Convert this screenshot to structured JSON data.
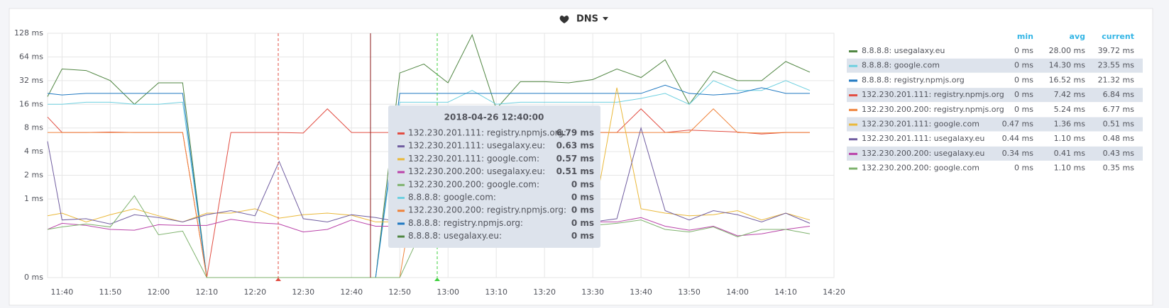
{
  "chart_data": {
    "type": "line",
    "title": "DNS",
    "x": [
      "11:37",
      "11:40",
      "11:45",
      "11:50",
      "11:55",
      "12:00",
      "12:05",
      "12:10",
      "12:15",
      "12:20",
      "12:25",
      "12:30",
      "12:35",
      "12:40",
      "12:45",
      "12:50",
      "12:55",
      "13:00",
      "13:05",
      "13:10",
      "13:15",
      "13:20",
      "13:25",
      "13:30",
      "13:35",
      "13:40",
      "13:45",
      "13:50",
      "13:55",
      "14:00",
      "14:05",
      "14:10",
      "14:15"
    ],
    "xlim": [
      "11:37",
      "14:20"
    ],
    "xticks": [
      "11:40",
      "11:50",
      "12:00",
      "12:10",
      "12:20",
      "12:30",
      "12:40",
      "12:50",
      "13:00",
      "13:10",
      "13:20",
      "13:30",
      "13:40",
      "13:50",
      "14:00",
      "14:10",
      "14:20"
    ],
    "ylim": [
      0.1,
      128
    ],
    "log_scale": true,
    "grid": true,
    "yticks": [
      {
        "value": 0.1,
        "label": "0 ms"
      },
      {
        "value": 1,
        "label": "1 ms"
      },
      {
        "value": 2,
        "label": "2 ms"
      },
      {
        "value": 4,
        "label": "4 ms"
      },
      {
        "value": 8,
        "label": "8 ms"
      },
      {
        "value": 16,
        "label": "16 ms"
      },
      {
        "value": 32,
        "label": "32 ms"
      },
      {
        "value": 64,
        "label": "64 ms"
      },
      {
        "value": 128,
        "label": "128 ms"
      }
    ],
    "series": [
      {
        "name": "8.8.8.8: usegalaxy.eu",
        "color": "#508642",
        "values": [
          20,
          45,
          43,
          32,
          16,
          30,
          30,
          0.1,
          0.1,
          0.1,
          0.1,
          0.1,
          0.1,
          0.1,
          0.1,
          40,
          52,
          30,
          122,
          14,
          31,
          31,
          30,
          33,
          45,
          35,
          59,
          16,
          42,
          32,
          32,
          56,
          41
        ]
      },
      {
        "name": "8.8.8.8: google.com",
        "color": "#6ed0e0",
        "values": [
          16,
          16,
          17,
          17,
          16,
          16,
          17,
          0.1,
          0.1,
          0.1,
          0.1,
          0.1,
          0.1,
          0.1,
          0.1,
          17,
          17,
          17,
          24,
          16,
          17,
          17,
          17,
          17,
          17,
          19,
          22,
          16,
          32,
          24,
          24,
          32,
          24
        ]
      },
      {
        "name": "8.8.8.8: registry.npmjs.org",
        "color": "#1f78c1",
        "values": [
          22,
          21,
          22,
          22,
          22,
          22,
          22,
          0.1,
          0.1,
          0.1,
          0.1,
          0.1,
          0.1,
          0.1,
          0.1,
          22,
          22,
          22,
          22,
          22,
          22,
          22,
          22,
          22,
          22,
          22,
          28,
          22,
          21,
          22,
          26,
          22,
          22
        ]
      },
      {
        "name": "132.230.201.111: registry.npmjs.org",
        "color": "#e24d42",
        "values": [
          11,
          7,
          7,
          7.1,
          7,
          7,
          7,
          0.1,
          7,
          7,
          7,
          6.9,
          14,
          7,
          7,
          7,
          7,
          7,
          7,
          7,
          7,
          7,
          7,
          7,
          7,
          14,
          7,
          7.5,
          7.3,
          7.1,
          6.7,
          7,
          7
        ]
      },
      {
        "name": "132.230.200.200: registry.npmjs.org",
        "color": "#ef843c",
        "values": [
          7,
          7,
          7,
          7,
          7,
          7,
          7,
          0.1,
          0.1,
          0.1,
          0.1,
          0.1,
          0.1,
          0.1,
          0.1,
          0.1,
          7,
          7,
          7,
          7,
          7,
          7,
          7,
          7,
          7,
          7,
          7,
          7,
          14,
          7,
          6.9,
          7,
          7
        ]
      },
      {
        "name": "132.230.201.111: google.com",
        "color": "#eab839",
        "values": [
          0.61,
          0.66,
          0.51,
          0.63,
          0.75,
          0.61,
          0.51,
          0.66,
          0.66,
          0.75,
          0.57,
          0.63,
          0.66,
          0.62,
          0.51,
          0.51,
          0.51,
          0.51,
          0.51,
          0.51,
          0.51,
          0.51,
          0.51,
          0.51,
          26,
          0.75,
          0.66,
          0.61,
          0.63,
          0.71,
          0.54,
          0.66,
          0.54
        ]
      },
      {
        "name": "132.230.201.111: usegalaxy.eu",
        "color": "#705da0",
        "values": [
          5.4,
          0.54,
          0.56,
          0.48,
          0.63,
          0.58,
          0.51,
          0.63,
          0.71,
          0.61,
          3,
          0.56,
          0.51,
          0.63,
          0.58,
          0.51,
          0.51,
          0.51,
          0.51,
          0.51,
          0.51,
          0.51,
          0.51,
          0.51,
          0.56,
          8,
          0.71,
          0.54,
          0.71,
          0.63,
          0.51,
          0.66,
          0.49
        ]
      },
      {
        "name": "132.230.200.200: usegalaxy.eu",
        "color": "#ba43a9",
        "values": [
          0.41,
          0.49,
          0.46,
          0.41,
          0.4,
          0.47,
          0.46,
          0.46,
          0.55,
          0.5,
          0.48,
          0.38,
          0.41,
          0.54,
          0.45,
          0.45,
          0.45,
          0.45,
          0.45,
          0.45,
          0.45,
          0.45,
          0.45,
          0.51,
          0.51,
          0.58,
          0.45,
          0.4,
          0.45,
          0.34,
          0.36,
          0.41,
          0.45
        ]
      },
      {
        "name": "132.230.200.200: google.com",
        "color": "#7eb26d",
        "values": [
          0.41,
          0.44,
          0.48,
          0.44,
          1.1,
          0.35,
          0.39,
          0.1,
          0.1,
          0.1,
          0.1,
          0.1,
          0.1,
          0.1,
          0.1,
          0.1,
          0.46,
          0.46,
          0.46,
          0.46,
          0.46,
          0.46,
          0.46,
          0.46,
          0.49,
          0.54,
          0.41,
          0.38,
          0.44,
          0.33,
          0.41,
          0.41,
          0.36
        ]
      }
    ],
    "legend": {
      "columns": [
        "min",
        "avg",
        "current"
      ],
      "rows": [
        {
          "min": "0 ms",
          "avg": "28.00 ms",
          "current": "39.72 ms"
        },
        {
          "min": "0 ms",
          "avg": "14.30 ms",
          "current": "23.55 ms"
        },
        {
          "min": "0 ms",
          "avg": "16.52 ms",
          "current": "21.32 ms"
        },
        {
          "min": "0 ms",
          "avg": "7.42 ms",
          "current": "6.84 ms"
        },
        {
          "min": "0 ms",
          "avg": "5.24 ms",
          "current": "6.77 ms"
        },
        {
          "min": "0.47 ms",
          "avg": "1.36 ms",
          "current": "0.51 ms"
        },
        {
          "min": "0.44 ms",
          "avg": "1.10 ms",
          "current": "0.48 ms"
        },
        {
          "min": "0.34 ms",
          "avg": "0.41 ms",
          "current": "0.43 ms"
        },
        {
          "min": "0 ms",
          "avg": "1.10 ms",
          "current": "0.35 ms"
        }
      ]
    },
    "tooltip": {
      "title": "2018-04-26 12:40:00",
      "rows": [
        {
          "name": "132.230.201.111: registry.npmjs.org:",
          "value": "6.79 ms",
          "color": "#e24d42"
        },
        {
          "name": "132.230.201.111: usegalaxy.eu:",
          "value": "0.63 ms",
          "color": "#705da0"
        },
        {
          "name": "132.230.201.111: google.com:",
          "value": "0.57 ms",
          "color": "#eab839"
        },
        {
          "name": "132.230.200.200: usegalaxy.eu:",
          "value": "0.51 ms",
          "color": "#ba43a9"
        },
        {
          "name": "132.230.200.200: google.com:",
          "value": "0 ms",
          "color": "#7eb26d"
        },
        {
          "name": "8.8.8.8: google.com:",
          "value": "0 ms",
          "color": "#6ed0e0"
        },
        {
          "name": "132.230.200.200: registry.npmjs.org:",
          "value": "0 ms",
          "color": "#ef843c"
        },
        {
          "name": "8.8.8.8: registry.npmjs.org:",
          "value": "0 ms",
          "color": "#1f78c1"
        },
        {
          "name": "8.8.8.8: usegalaxy.eu:",
          "value": "0 ms",
          "color": "#508642"
        }
      ]
    }
  }
}
